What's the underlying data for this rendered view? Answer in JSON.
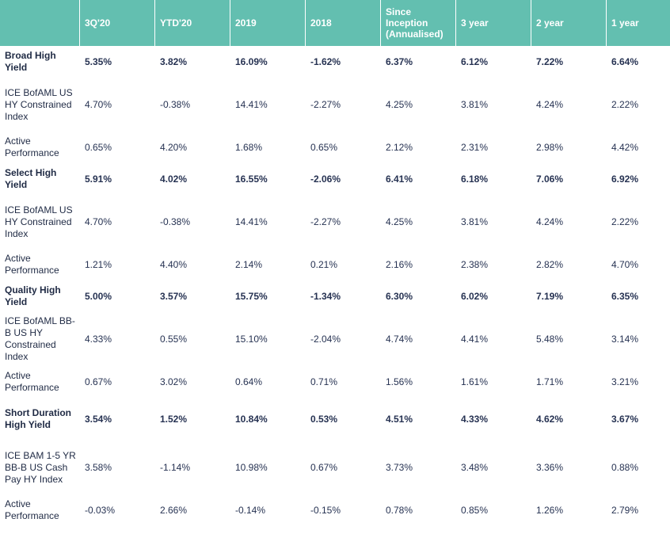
{
  "header": [
    "",
    "3Q'20",
    "YTD'20",
    "2019",
    "2018",
    "Since Inception (Annualised)",
    "3 year",
    "2 year",
    "1 year"
  ],
  "rows": [
    {
      "bold": true,
      "size": "h2",
      "label": "Broad High Yield",
      "values": [
        "5.35%",
        "3.82%",
        "16.09%",
        "-1.62%",
        "6.37%",
        "6.12%",
        "7.22%",
        "6.64%"
      ]
    },
    {
      "bold": false,
      "size": "h4",
      "label": "ICE BofAML US HY Constrained Index",
      "values": [
        "4.70%",
        "-0.38%",
        "14.41%",
        "-2.27%",
        "4.25%",
        "3.81%",
        "4.24%",
        "2.22%"
      ]
    },
    {
      "bold": false,
      "size": "h2",
      "label": "Active Performance",
      "values": [
        "0.65%",
        "4.20%",
        "1.68%",
        "0.65%",
        "2.12%",
        "2.31%",
        "2.98%",
        "4.42%"
      ]
    },
    {
      "bold": true,
      "size": "h2",
      "label": "Select High Yield",
      "values": [
        "5.91%",
        "4.02%",
        "16.55%",
        "-2.06%",
        "6.41%",
        "6.18%",
        "7.06%",
        "6.92%"
      ]
    },
    {
      "bold": false,
      "size": "h4",
      "label": "ICE BofAML US HY Constrained Index",
      "values": [
        "4.70%",
        "-0.38%",
        "14.41%",
        "-2.27%",
        "4.25%",
        "3.81%",
        "4.24%",
        "2.22%"
      ]
    },
    {
      "bold": false,
      "size": "h2",
      "label": "Active Performance",
      "values": [
        "1.21%",
        "4.40%",
        "2.14%",
        "0.21%",
        "2.16%",
        "2.38%",
        "2.82%",
        "4.70%"
      ]
    },
    {
      "bold": true,
      "size": "h2",
      "label": "Quality High Yield",
      "values": [
        "5.00%",
        "3.57%",
        "15.75%",
        "-1.34%",
        "6.30%",
        "6.02%",
        "7.19%",
        "6.35%"
      ]
    },
    {
      "bold": false,
      "size": "h4",
      "label": "ICE BofAML BB-B US HY Constrained Index",
      "values": [
        "4.33%",
        "0.55%",
        "15.10%",
        "-2.04%",
        "4.74%",
        "4.41%",
        "5.48%",
        "3.14%"
      ]
    },
    {
      "bold": false,
      "size": "h2",
      "label": "Active Performance",
      "values": [
        "0.67%",
        "3.02%",
        "0.64%",
        "0.71%",
        "1.56%",
        "1.61%",
        "1.71%",
        "3.21%"
      ]
    },
    {
      "bold": true,
      "size": "h3",
      "label": "Short Duration High Yield",
      "values": [
        "3.54%",
        "1.52%",
        "10.84%",
        "0.53%",
        "4.51%",
        "4.33%",
        "4.62%",
        "3.67%"
      ]
    },
    {
      "bold": false,
      "size": "h4",
      "label": "ICE BAM 1-5 YR BB-B US Cash Pay HY Index",
      "values": [
        "3.58%",
        "-1.14%",
        "10.98%",
        "0.67%",
        "3.73%",
        "3.48%",
        "3.36%",
        "0.88%"
      ]
    },
    {
      "bold": false,
      "size": "h2",
      "label": "Active Performance",
      "values": [
        "-0.03%",
        "2.66%",
        "-0.14%",
        "-0.15%",
        "0.78%",
        "0.85%",
        "1.26%",
        "2.79%"
      ]
    }
  ],
  "colors": {
    "header_bg": "#63bfb0",
    "header_text": "#ffffff",
    "body_text": "#263252"
  }
}
